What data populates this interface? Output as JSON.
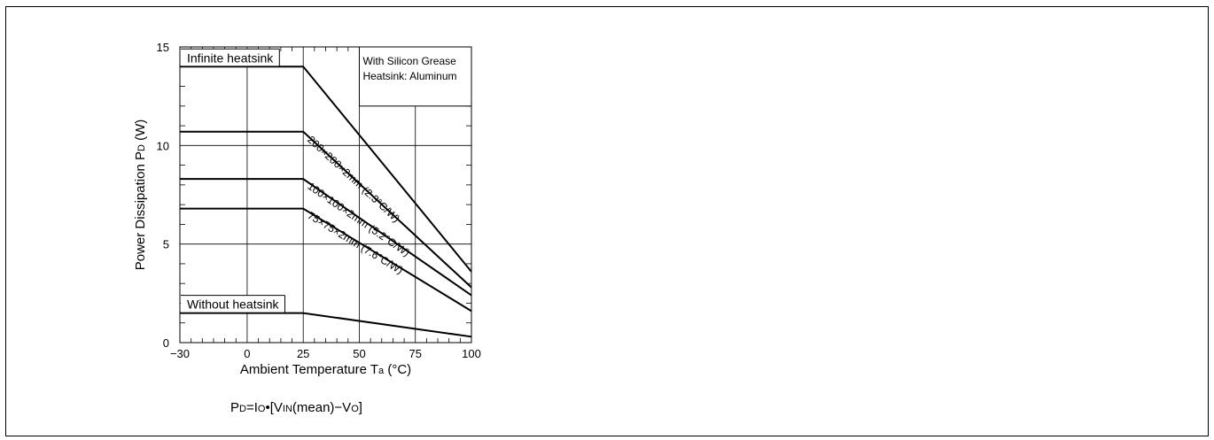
{
  "chart_data": {
    "type": "line",
    "xlabel_main": "Ambient Temperature T",
    "xlabel_sub": "a",
    "xlabel_unit": " (°C)",
    "ylabel_main": "Power Dissipation P",
    "ylabel_sub": "D",
    "ylabel_unit": " (W)",
    "xlim": [
      -30,
      100
    ],
    "ylim": [
      0,
      15
    ],
    "x_ticks": [
      -30,
      0,
      25,
      50,
      75,
      100
    ],
    "x_tick_labels": [
      "−30",
      "0",
      "25",
      "50",
      "75",
      "100"
    ],
    "y_ticks": [
      0,
      5,
      10,
      15
    ],
    "y_tick_labels": [
      "0",
      "5",
      "10",
      "15"
    ],
    "grid": true,
    "series": [
      {
        "name": "Infinite heatsink",
        "x": [
          -30,
          25,
          100
        ],
        "y": [
          14.0,
          14.0,
          3.6
        ]
      },
      {
        "name": "200×200×2mm (2.3°C/W)",
        "x": [
          -30,
          25,
          100
        ],
        "y": [
          10.7,
          10.7,
          2.8
        ]
      },
      {
        "name": "100×100×2mm (5.2°C/W)",
        "x": [
          -30,
          25,
          100
        ],
        "y": [
          8.3,
          8.3,
          2.4
        ]
      },
      {
        "name": "75×75×2mm (7.6°C/W)",
        "x": [
          -30,
          25,
          100
        ],
        "y": [
          6.8,
          6.8,
          1.6
        ]
      },
      {
        "name": "Without heatsink",
        "x": [
          -30,
          25,
          100
        ],
        "y": [
          1.5,
          1.5,
          0.3
        ]
      }
    ],
    "annotation": {
      "line1": "With Silicon Grease",
      "line2": "Heatsink: Aluminum"
    }
  },
  "formula": {
    "p": "P",
    "d": "D",
    "eq_i": "=I",
    "o": "O",
    "bracket_v": "•[V",
    "in": "IN",
    "mean_v": "(mean)−V",
    "o2": "O",
    "close": "]"
  }
}
